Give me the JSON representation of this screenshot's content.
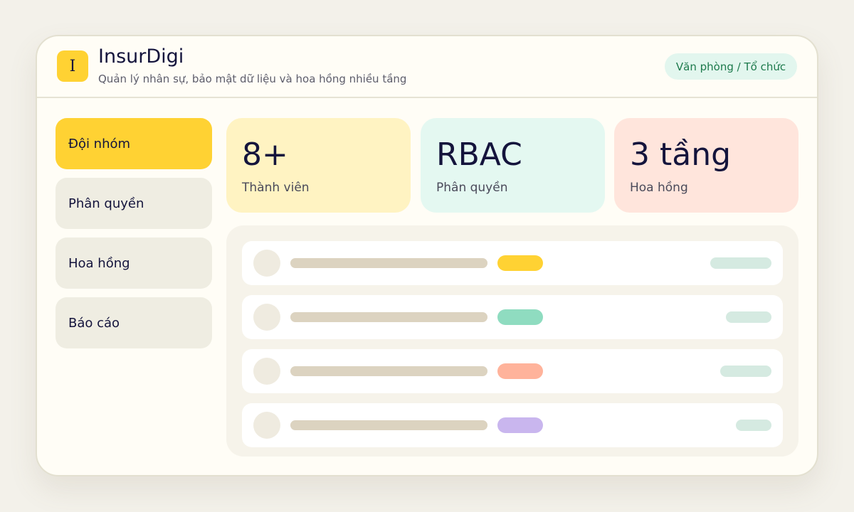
{
  "header": {
    "logo": "I",
    "title": "InsurDigi",
    "subtitle": "Quản lý nhân sự, bảo mật dữ liệu và hoa hồng nhiều tầng",
    "badge": "Văn phòng / Tổ chức"
  },
  "nav": {
    "items": [
      "Đội nhóm",
      "Phân quyền",
      "Hoa hồng",
      "Báo cáo"
    ]
  },
  "stats": [
    {
      "value": "8+",
      "label": "Thành viên"
    },
    {
      "value": "RBAC",
      "label": "Phân quyền"
    },
    {
      "value": "3 tầng",
      "label": "Hoa hồng"
    }
  ]
}
